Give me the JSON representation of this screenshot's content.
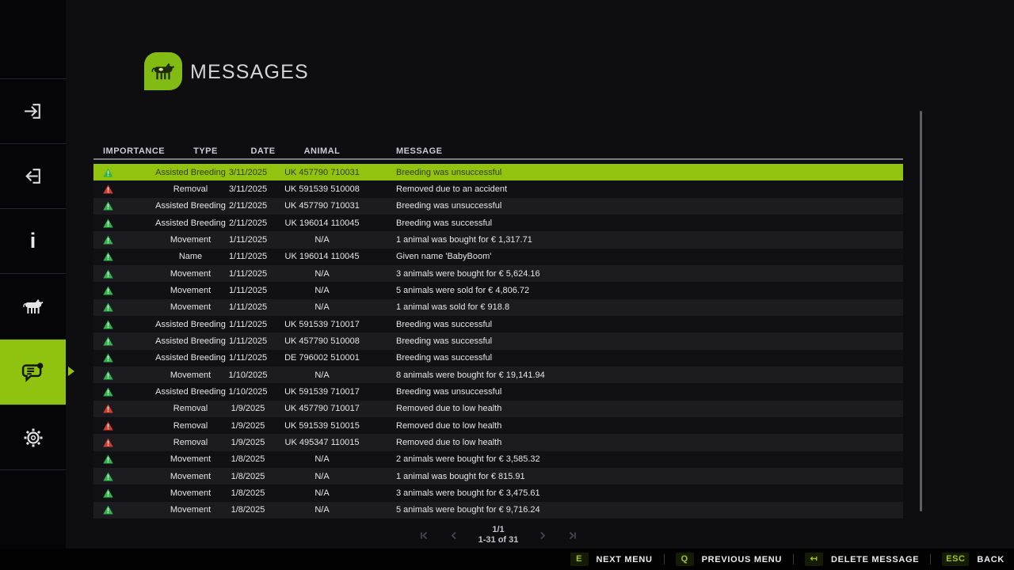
{
  "colors": {
    "accent_green": "#90c30f",
    "selected_row_green": "#92c40f",
    "selected_text": "#333d10",
    "info_green": "#2fb549",
    "warning_red": "#d93a2e",
    "key_green": "#9dc41d"
  },
  "sidebar": {
    "items": [
      {
        "id": "next-menu",
        "icon": "enter-menu-icon",
        "active": false
      },
      {
        "id": "previous-menu",
        "icon": "leave-menu-icon",
        "active": false
      },
      {
        "id": "info",
        "icon": "info-icon",
        "glyph": "i",
        "active": false
      },
      {
        "id": "animals",
        "icon": "cow-icon",
        "active": false
      },
      {
        "id": "messages",
        "icon": "messages-icon",
        "active": true
      },
      {
        "id": "settings",
        "icon": "gear-icon",
        "active": false
      }
    ]
  },
  "header": {
    "title": "MESSAGES",
    "icon": "cow-badge-icon"
  },
  "table": {
    "columns": [
      "IMPORTANCE",
      "TYPE",
      "DATE",
      "ANIMAL",
      "MESSAGE"
    ],
    "rows": [
      {
        "importance": "info",
        "type": "Assisted Breeding",
        "date": "3/11/2025",
        "animal": "UK 457790 710031",
        "message": "Breeding was unsuccessful",
        "selected": true
      },
      {
        "importance": "warning",
        "type": "Removal",
        "date": "3/11/2025",
        "animal": "UK 591539 510008",
        "message": "Removed due to an accident"
      },
      {
        "importance": "info",
        "type": "Assisted Breeding",
        "date": "2/11/2025",
        "animal": "UK 457790 710031",
        "message": "Breeding was unsuccessful"
      },
      {
        "importance": "info",
        "type": "Assisted Breeding",
        "date": "2/11/2025",
        "animal": "UK 196014 110045",
        "message": "Breeding was successful"
      },
      {
        "importance": "info",
        "type": "Movement",
        "date": "1/11/2025",
        "animal": "N/A",
        "message": "1 animal was bought for € 1,317.71"
      },
      {
        "importance": "info",
        "type": "Name",
        "date": "1/11/2025",
        "animal": "UK 196014 110045",
        "message": "Given name 'BabyBoom'"
      },
      {
        "importance": "info",
        "type": "Movement",
        "date": "1/11/2025",
        "animal": "N/A",
        "message": "3 animals were bought for € 5,624.16"
      },
      {
        "importance": "info",
        "type": "Movement",
        "date": "1/11/2025",
        "animal": "N/A",
        "message": "5 animals were sold for € 4,806.72"
      },
      {
        "importance": "info",
        "type": "Movement",
        "date": "1/11/2025",
        "animal": "N/A",
        "message": "1 animal was sold for € 918.8"
      },
      {
        "importance": "info",
        "type": "Assisted Breeding",
        "date": "1/11/2025",
        "animal": "UK 591539 710017",
        "message": "Breeding was successful"
      },
      {
        "importance": "info",
        "type": "Assisted Breeding",
        "date": "1/11/2025",
        "animal": "UK 457790 510008",
        "message": "Breeding was successful"
      },
      {
        "importance": "info",
        "type": "Assisted Breeding",
        "date": "1/11/2025",
        "animal": "DE 796002 510001",
        "message": "Breeding was successful"
      },
      {
        "importance": "info",
        "type": "Movement",
        "date": "1/10/2025",
        "animal": "N/A",
        "message": "8 animals were bought for € 19,141.94"
      },
      {
        "importance": "info",
        "type": "Assisted Breeding",
        "date": "1/10/2025",
        "animal": "UK 591539 710017",
        "message": "Breeding was unsuccessful"
      },
      {
        "importance": "warning",
        "type": "Removal",
        "date": "1/9/2025",
        "animal": "UK 457790 710017",
        "message": "Removed due to low health"
      },
      {
        "importance": "warning",
        "type": "Removal",
        "date": "1/9/2025",
        "animal": "UK 591539 510015",
        "message": "Removed due to low health"
      },
      {
        "importance": "warning",
        "type": "Removal",
        "date": "1/9/2025",
        "animal": "UK 495347 110015",
        "message": "Removed due to low health"
      },
      {
        "importance": "info",
        "type": "Movement",
        "date": "1/8/2025",
        "animal": "N/A",
        "message": "2 animals were bought for € 3,585.32"
      },
      {
        "importance": "info",
        "type": "Movement",
        "date": "1/8/2025",
        "animal": "N/A",
        "message": "1 animal was bought for € 815.91"
      },
      {
        "importance": "info",
        "type": "Movement",
        "date": "1/8/2025",
        "animal": "N/A",
        "message": "3 animals were bought for € 3,475.61"
      },
      {
        "importance": "info",
        "type": "Movement",
        "date": "1/8/2025",
        "animal": "N/A",
        "message": "5 animals were bought for € 9,716.24"
      }
    ]
  },
  "pagination": {
    "page": "1/1",
    "range": "1-31 of 31"
  },
  "hotkeys": {
    "next": {
      "key": "E",
      "label": "NEXT MENU"
    },
    "previous": {
      "key": "Q",
      "label": "PREVIOUS MENU"
    },
    "delete": {
      "key": "↤",
      "label": "DELETE MESSAGE"
    },
    "back": {
      "key": "ESC",
      "label": "BACK"
    }
  }
}
